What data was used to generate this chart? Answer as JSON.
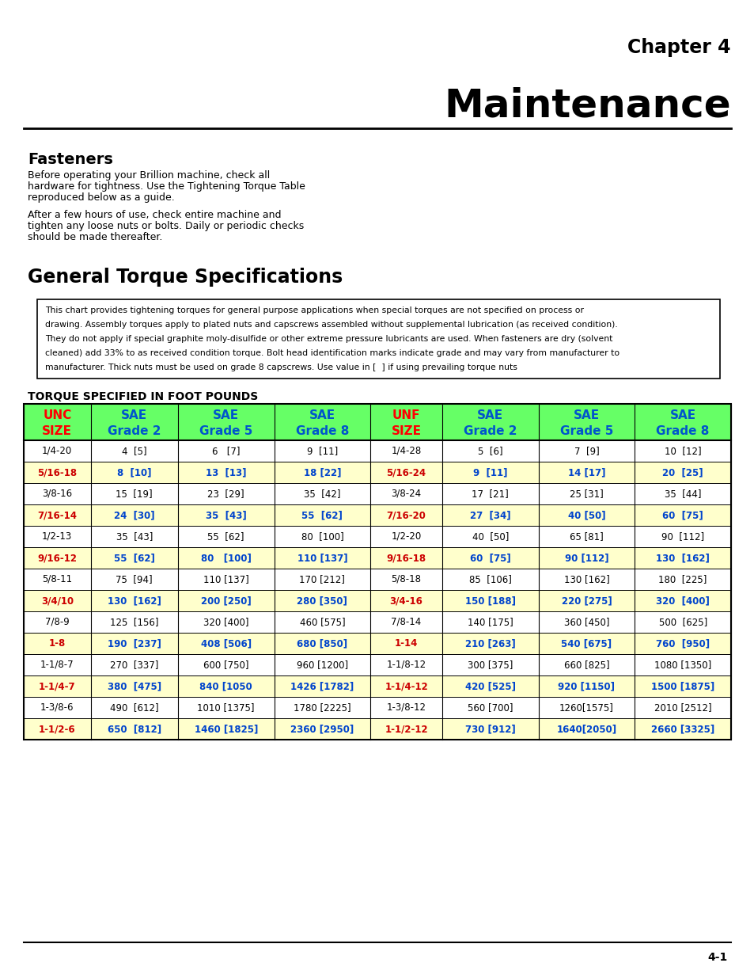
{
  "chapter_label": "Chapter 4",
  "main_title": "Maintenance",
  "section1_title": "Fasteners",
  "section1_para1a": "Before operating your Brillion machine, check all",
  "section1_para1b": "hardware for tightness. Use the Tightening Torque Table",
  "section1_para1c": "reproduced below as a guide.",
  "section1_para2a": "After a few hours of use, check entire machine and",
  "section1_para2b": "tighten any loose nuts or bolts. Daily or periodic checks",
  "section1_para2c": "should be made thereafter.",
  "section2_title": "General Torque Specifications",
  "notice_text": "This chart provides tightening torques for general purpose applications when special torques are not specified on process or\ndrawing. Assembly torques apply to plated nuts and capscrews assembled without supplemental lubrication (as received condition).\nThey do not apply if special graphite moly-disulfide or other extreme pressure lubricants are used. When fasteners are dry (solvent\ncleaned) add 33% to as received condition torque. Bolt head identification marks indicate grade and may vary from manufacturer to\nmanufacturer. Thick nuts must be used on grade 8 capscrews. Use value in [  ] if using prevailing torque nuts",
  "table_subtitle": "TORQUE SPECIFIED IN FOOT POUNDS",
  "col_headers": [
    [
      "UNC",
      "SIZE"
    ],
    [
      "SAE",
      "Grade 2"
    ],
    [
      "SAE",
      "Grade 5"
    ],
    [
      "SAE",
      "Grade 8"
    ],
    [
      "UNF",
      "SIZE"
    ],
    [
      "SAE",
      "Grade 2"
    ],
    [
      "SAE",
      "Grade 5"
    ],
    [
      "SAE",
      "Grade 8"
    ]
  ],
  "col_header_colors": [
    "#ff0000",
    "#0055cc",
    "#0055cc",
    "#0055cc",
    "#ff0000",
    "#0055cc",
    "#0055cc",
    "#0055cc"
  ],
  "table_data": [
    [
      "1/4-20",
      "4  [5]",
      "6   [7]",
      "9  [11]",
      "1/4-28",
      "5  [6]",
      "7  [9]",
      "10  [12]"
    ],
    [
      "5/16-18",
      "8  [10]",
      "13  [13]",
      "18 [22]",
      "5/16-24",
      "9  [11]",
      "14 [17]",
      "20  [25]"
    ],
    [
      "3/8-16",
      "15  [19]",
      "23  [29]",
      "35  [42]",
      "3/8-24",
      "17  [21]",
      "25 [31]",
      "35  [44]"
    ],
    [
      "7/16-14",
      "24  [30]",
      "35  [43]",
      "55  [62]",
      "7/16-20",
      "27  [34]",
      "40 [50]",
      "60  [75]"
    ],
    [
      "1/2-13",
      "35  [43]",
      "55  [62]",
      "80  [100]",
      "1/2-20",
      "40  [50]",
      "65 [81]",
      "90  [112]"
    ],
    [
      "9/16-12",
      "55  [62]",
      "80   [100]",
      "110 [137]",
      "9/16-18",
      "60  [75]",
      "90 [112]",
      "130  [162]"
    ],
    [
      "5/8-11",
      "75  [94]",
      "110 [137]",
      "170 [212]",
      "5/8-18",
      "85  [106]",
      "130 [162]",
      "180  [225]"
    ],
    [
      "3/4/10",
      "130  [162]",
      "200 [250]",
      "280 [350]",
      "3/4-16",
      "150 [188]",
      "220 [275]",
      "320  [400]"
    ],
    [
      "7/8-9",
      "125  [156]",
      "320 [400]",
      "460 [575]",
      "7/8-14",
      "140 [175]",
      "360 [450]",
      "500  [625]"
    ],
    [
      "1-8",
      "190  [237]",
      "408 [506]",
      "680 [850]",
      "1-14",
      "210 [263]",
      "540 [675]",
      "760  [950]"
    ],
    [
      "1-1/8-7",
      "270  [337]",
      "600 [750]",
      "960 [1200]",
      "1-1/8-12",
      "300 [375]",
      "660 [825]",
      "1080 [1350]"
    ],
    [
      "1-1/4-7",
      "380  [475]",
      "840 [1050",
      "1426 [1782]",
      "1-1/4-12",
      "420 [525]",
      "920 [1150]",
      "1500 [1875]"
    ],
    [
      "1-3/8-6",
      "490  [612]",
      "1010 [1375]",
      "1780 [2225]",
      "1-3/8-12",
      "560 [700]",
      "1260[1575]",
      "2010 [2512]"
    ],
    [
      "1-1/2-6",
      "650  [812]",
      "1460 [1825]",
      "2360 [2950]",
      "1-1/2-12",
      "730 [912]",
      "1640[2050]",
      "2660 [3325]"
    ]
  ],
  "highlight_rows": [
    1,
    3,
    5,
    7,
    9,
    11,
    13
  ],
  "highlight_color": "#ffffcc",
  "header_bg": "#66ff66",
  "table_border_color": "#000000",
  "page_number": "4-1",
  "bg_color": "#ffffff"
}
